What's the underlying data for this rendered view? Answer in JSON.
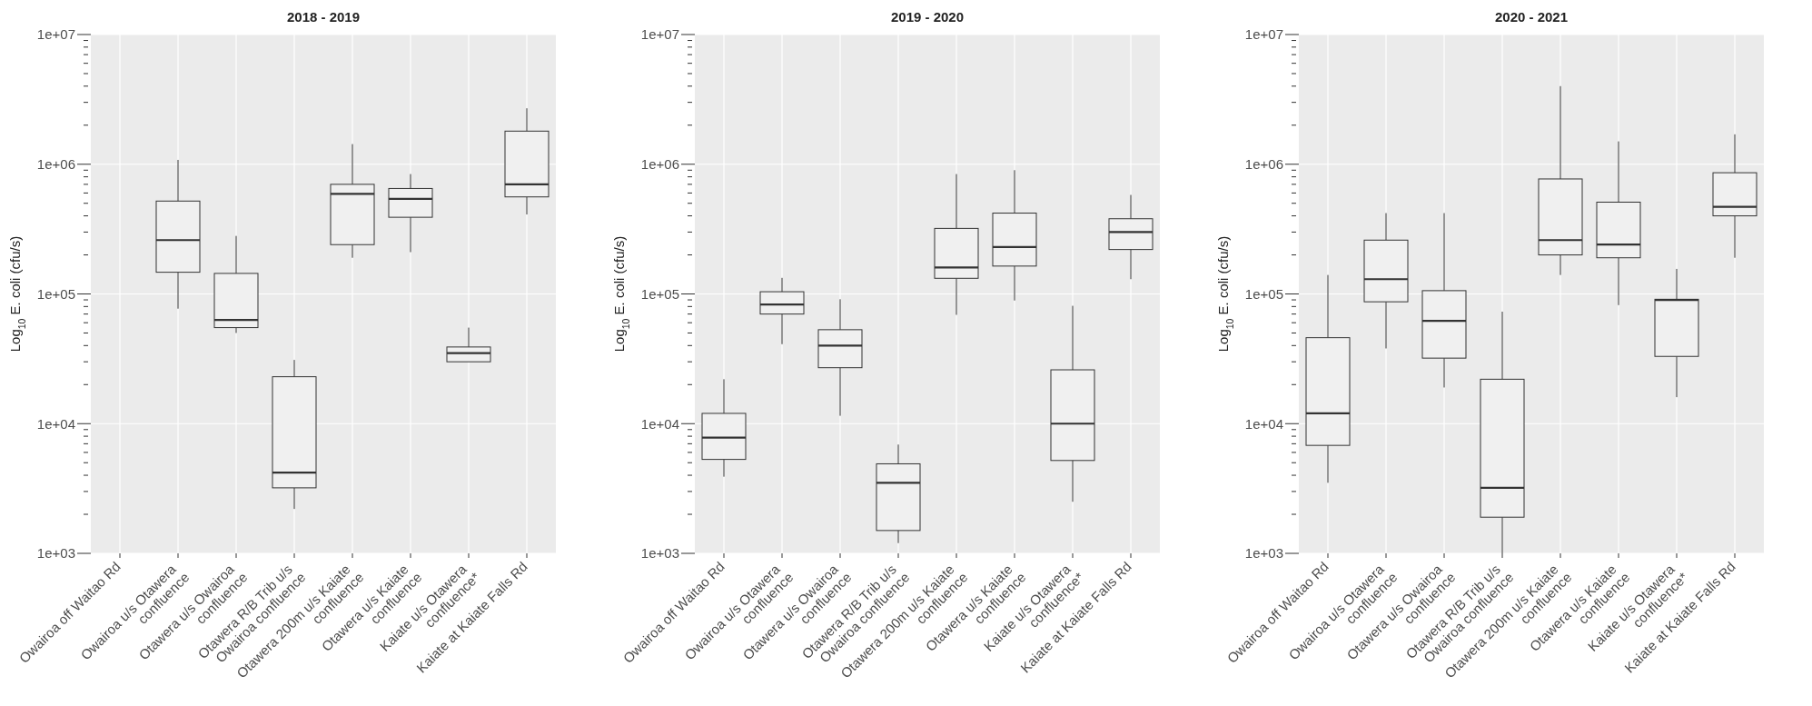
{
  "chart_data": [
    {
      "type": "box",
      "title": "2018 - 2019",
      "ylabel": "Log$_{10}$ E. coli (cfu/s)",
      "log": true,
      "grid": true,
      "categories": [
        "Owairoa off Waitao Rd",
        "Owairoa u/s Otawera\nconfluence",
        "Otawera u/s Owairoa\nconfluence",
        "Otawera R/B Trib u/s\nOwairoa confluence",
        "Otawera 200m u/s Kaiate\nconfluence",
        "Otawera u/s Kaiate\nconfluence",
        "Kaiate u/s Otawera\nconfluence*",
        "Kaiate at Kaiate Falls Rd"
      ],
      "ylim": [
        1000,
        10000000
      ],
      "yticks": [
        {
          "value": 1000,
          "label": "1e+03"
        },
        {
          "value": 2000,
          "label": null
        },
        {
          "value": 3000,
          "label": null
        },
        {
          "value": 4000,
          "label": null
        },
        {
          "value": 5000,
          "label": null
        },
        {
          "value": 6000,
          "label": null
        },
        {
          "value": 7000,
          "label": null
        },
        {
          "value": 8000,
          "label": null
        },
        {
          "value": 9000,
          "label": null
        },
        {
          "value": 10000,
          "label": "1e+04"
        },
        {
          "value": 20000,
          "label": null
        },
        {
          "value": 30000,
          "label": null
        },
        {
          "value": 40000,
          "label": null
        },
        {
          "value": 50000,
          "label": null
        },
        {
          "value": 60000,
          "label": null
        },
        {
          "value": 70000,
          "label": null
        },
        {
          "value": 80000,
          "label": null
        },
        {
          "value": 90000,
          "label": null
        },
        {
          "value": 100000,
          "label": "1e+05"
        },
        {
          "value": 200000,
          "label": null
        },
        {
          "value": 300000,
          "label": null
        },
        {
          "value": 400000,
          "label": null
        },
        {
          "value": 500000,
          "label": null
        },
        {
          "value": 600000,
          "label": null
        },
        {
          "value": 700000,
          "label": null
        },
        {
          "value": 800000,
          "label": null
        },
        {
          "value": 900000,
          "label": null
        },
        {
          "value": 1000000,
          "label": "1e+06"
        },
        {
          "value": 2000000,
          "label": null
        },
        {
          "value": 3000000,
          "label": null
        },
        {
          "value": 4000000,
          "label": null
        },
        {
          "value": 5000000,
          "label": null
        },
        {
          "value": 6000000,
          "label": null
        },
        {
          "value": 7000000,
          "label": null
        },
        {
          "value": 8000000,
          "label": null
        },
        {
          "value": 9000000,
          "label": null
        },
        {
          "value": 10000000,
          "label": "1e+07"
        }
      ],
      "boxes": [
        null,
        {
          "low": 77000,
          "q1": 147000,
          "median": 260000,
          "q3": 520000,
          "high": 1080000
        },
        {
          "low": 50000,
          "q1": 55000,
          "median": 63000,
          "q3": 144000,
          "high": 280000
        },
        {
          "low": 2200,
          "q1": 3200,
          "median": 4200,
          "q3": 23000,
          "high": 31000
        },
        {
          "low": 190000,
          "q1": 240000,
          "median": 590000,
          "q3": 700000,
          "high": 1430000
        },
        {
          "low": 210000,
          "q1": 390000,
          "median": 540000,
          "q3": 650000,
          "high": 840000
        },
        {
          "low": 30000,
          "q1": 30000,
          "median": 35000,
          "q3": 39000,
          "high": 55000
        },
        {
          "low": 410000,
          "q1": 560000,
          "median": 700000,
          "q3": 1800000,
          "high": 2700000
        }
      ]
    },
    {
      "type": "box",
      "title": "2019 - 2020",
      "ylabel": "Log$_{10}$ E. coli (cfu/s)",
      "log": true,
      "grid": true,
      "categories": [
        "Owairoa off Waitao Rd",
        "Owairoa u/s Otawera\nconfluence",
        "Otawera u/s Owairoa\nconfluence",
        "Otawera R/B Trib u/s\nOwairoa confluence",
        "Otawera 200m u/s Kaiate\nconfluence",
        "Otawera u/s Kaiate\nconfluence",
        "Kaiate u/s Otawera\nconfluence*",
        "Kaiate at Kaiate Falls Rd"
      ],
      "ylim": [
        1000,
        10000000
      ],
      "yticks": [
        {
          "value": 1000,
          "label": "1e+03"
        },
        {
          "value": 2000,
          "label": null
        },
        {
          "value": 3000,
          "label": null
        },
        {
          "value": 4000,
          "label": null
        },
        {
          "value": 5000,
          "label": null
        },
        {
          "value": 6000,
          "label": null
        },
        {
          "value": 7000,
          "label": null
        },
        {
          "value": 8000,
          "label": null
        },
        {
          "value": 9000,
          "label": null
        },
        {
          "value": 10000,
          "label": "1e+04"
        },
        {
          "value": 20000,
          "label": null
        },
        {
          "value": 30000,
          "label": null
        },
        {
          "value": 40000,
          "label": null
        },
        {
          "value": 50000,
          "label": null
        },
        {
          "value": 60000,
          "label": null
        },
        {
          "value": 70000,
          "label": null
        },
        {
          "value": 80000,
          "label": null
        },
        {
          "value": 90000,
          "label": null
        },
        {
          "value": 100000,
          "label": "1e+05"
        },
        {
          "value": 200000,
          "label": null
        },
        {
          "value": 300000,
          "label": null
        },
        {
          "value": 400000,
          "label": null
        },
        {
          "value": 500000,
          "label": null
        },
        {
          "value": 600000,
          "label": null
        },
        {
          "value": 700000,
          "label": null
        },
        {
          "value": 800000,
          "label": null
        },
        {
          "value": 900000,
          "label": null
        },
        {
          "value": 1000000,
          "label": "1e+06"
        },
        {
          "value": 2000000,
          "label": null
        },
        {
          "value": 3000000,
          "label": null
        },
        {
          "value": 4000000,
          "label": null
        },
        {
          "value": 5000000,
          "label": null
        },
        {
          "value": 6000000,
          "label": null
        },
        {
          "value": 7000000,
          "label": null
        },
        {
          "value": 8000000,
          "label": null
        },
        {
          "value": 9000000,
          "label": null
        },
        {
          "value": 10000000,
          "label": "1e+07"
        }
      ],
      "boxes": [
        {
          "low": 3900,
          "q1": 5300,
          "median": 7800,
          "q3": 12000,
          "high": 22000
        },
        {
          "low": 41000,
          "q1": 70000,
          "median": 83000,
          "q3": 104000,
          "high": 133000
        },
        {
          "low": 11500,
          "q1": 27000,
          "median": 40000,
          "q3": 53000,
          "high": 91000
        },
        {
          "low": 1200,
          "q1": 1500,
          "median": 3500,
          "q3": 4900,
          "high": 6900
        },
        {
          "low": 69000,
          "q1": 132000,
          "median": 160000,
          "q3": 320000,
          "high": 840000
        },
        {
          "low": 89000,
          "q1": 164000,
          "median": 230000,
          "q3": 420000,
          "high": 900000
        },
        {
          "low": 2500,
          "q1": 5200,
          "median": 10000,
          "q3": 26000,
          "high": 81000
        },
        {
          "low": 130000,
          "q1": 220000,
          "median": 300000,
          "q3": 380000,
          "high": 580000
        }
      ]
    },
    {
      "type": "box",
      "title": "2020 - 2021",
      "ylabel": "Log$_{10}$ E. coli (cfu/s)",
      "log": true,
      "grid": true,
      "categories": [
        "Owairoa off Waitao Rd",
        "Owairoa u/s Otawera\nconfluence",
        "Otawera u/s Owairoa\nconfluence",
        "Otawera R/B Trib u/s\nOwairoa confluence",
        "Otawera 200m u/s Kaiate\nconfluence",
        "Otawera u/s Kaiate\nconfluence",
        "Kaiate u/s Otawera\nconfluence*",
        "Kaiate at Kaiate Falls Rd"
      ],
      "ylim": [
        1000,
        10000000
      ],
      "yticks": [
        {
          "value": 1000,
          "label": "1e+03"
        },
        {
          "value": 2000,
          "label": null
        },
        {
          "value": 3000,
          "label": null
        },
        {
          "value": 4000,
          "label": null
        },
        {
          "value": 5000,
          "label": null
        },
        {
          "value": 6000,
          "label": null
        },
        {
          "value": 7000,
          "label": null
        },
        {
          "value": 8000,
          "label": null
        },
        {
          "value": 9000,
          "label": null
        },
        {
          "value": 10000,
          "label": "1e+04"
        },
        {
          "value": 20000,
          "label": null
        },
        {
          "value": 30000,
          "label": null
        },
        {
          "value": 40000,
          "label": null
        },
        {
          "value": 50000,
          "label": null
        },
        {
          "value": 60000,
          "label": null
        },
        {
          "value": 70000,
          "label": null
        },
        {
          "value": 80000,
          "label": null
        },
        {
          "value": 90000,
          "label": null
        },
        {
          "value": 100000,
          "label": "1e+05"
        },
        {
          "value": 200000,
          "label": null
        },
        {
          "value": 300000,
          "label": null
        },
        {
          "value": 400000,
          "label": null
        },
        {
          "value": 500000,
          "label": null
        },
        {
          "value": 600000,
          "label": null
        },
        {
          "value": 700000,
          "label": null
        },
        {
          "value": 800000,
          "label": null
        },
        {
          "value": 900000,
          "label": null
        },
        {
          "value": 1000000,
          "label": "1e+06"
        },
        {
          "value": 2000000,
          "label": null
        },
        {
          "value": 3000000,
          "label": null
        },
        {
          "value": 4000000,
          "label": null
        },
        {
          "value": 5000000,
          "label": null
        },
        {
          "value": 6000000,
          "label": null
        },
        {
          "value": 7000000,
          "label": null
        },
        {
          "value": 8000000,
          "label": null
        },
        {
          "value": 9000000,
          "label": null
        },
        {
          "value": 10000000,
          "label": "1e+07"
        }
      ],
      "boxes": [
        {
          "low": 3500,
          "q1": 6800,
          "median": 12000,
          "q3": 46000,
          "high": 140000
        },
        {
          "low": 38000,
          "q1": 87000,
          "median": 130000,
          "q3": 260000,
          "high": 420000
        },
        {
          "low": 19000,
          "q1": 32000,
          "median": 62000,
          "q3": 106000,
          "high": 420000
        },
        {
          "low": 1000,
          "q1": 1900,
          "median": 3200,
          "q3": 22000,
          "high": 73000
        },
        {
          "low": 140000,
          "q1": 200000,
          "median": 260000,
          "q3": 770000,
          "high": 4000000
        },
        {
          "low": 82000,
          "q1": 190000,
          "median": 240000,
          "q3": 510000,
          "high": 1500000
        },
        {
          "low": 16000,
          "q1": 33000,
          "median": 90000,
          "q3": 91000,
          "high": 156000
        },
        {
          "low": 190000,
          "q1": 400000,
          "median": 470000,
          "q3": 860000,
          "high": 1700000
        }
      ]
    }
  ]
}
